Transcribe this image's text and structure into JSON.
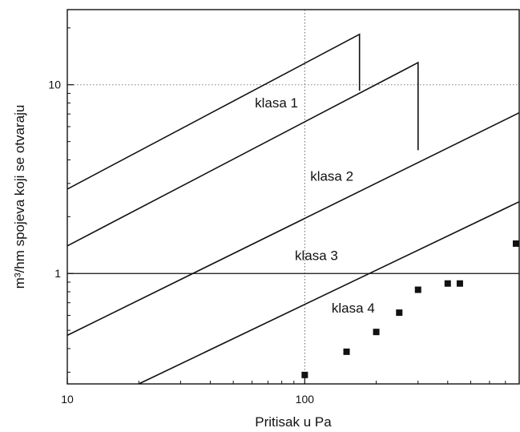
{
  "chart_data": {
    "type": "line",
    "title": "",
    "xlabel": "Pritisak u Pa",
    "ylabel": "m³/hm spojeva koji se otvaraju",
    "xscale": "log",
    "yscale": "log",
    "xlim": [
      10,
      800
    ],
    "ylim": [
      0.26,
      25
    ],
    "xticks": [
      {
        "value": 10,
        "label": "10"
      },
      {
        "value": 100,
        "label": "100"
      }
    ],
    "yticks": [
      {
        "value": 1,
        "label": "1"
      },
      {
        "value": 10,
        "label": "10"
      }
    ],
    "grid": "dotted reference lines at x=100 and y=10",
    "classes": [
      {
        "label": "klasa 1",
        "label_at": {
          "x": 76,
          "y": 7.6
        },
        "line": {
          "x": [
            10,
            170,
            170
          ],
          "y": [
            2.8,
            18.5,
            9.3
          ]
        }
      },
      {
        "label": "klasa 2",
        "label_at": {
          "x": 130,
          "y": 3.1
        },
        "line": {
          "x": [
            10,
            300,
            300
          ],
          "y": [
            1.4,
            13.1,
            4.5
          ]
        }
      },
      {
        "label": "klasa 3",
        "label_at": {
          "x": 112,
          "y": 1.18
        },
        "line": {
          "x": [
            10,
            800
          ],
          "y": [
            0.47,
            7.1
          ]
        }
      },
      {
        "label": "klasa 4",
        "label_at": {
          "x": 160,
          "y": 0.62
        },
        "line": {
          "x": [
            20,
            800
          ],
          "y": [
            0.26,
            2.4
          ]
        }
      }
    ],
    "points": {
      "x": [
        100,
        150,
        200,
        250,
        300,
        400,
        450,
        800
      ],
      "y": [
        0.29,
        0.385,
        0.49,
        0.62,
        0.82,
        0.885,
        0.885,
        1.44
      ]
    }
  }
}
